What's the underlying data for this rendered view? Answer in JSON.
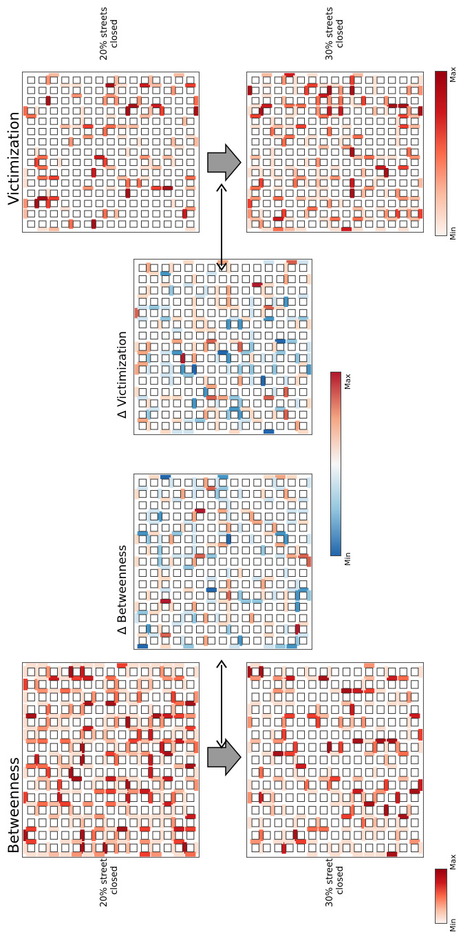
{
  "labels": {
    "betweenness": "Betweenness",
    "victimization": "Victimization",
    "delta_betweenness": "Δ Betweenness",
    "delta_victimization": "Δ Victimization"
  },
  "captions": {
    "bet_20": [
      "20% streets",
      "closed"
    ],
    "bet_30": [
      "30% streets",
      "closed"
    ],
    "vic_20": [
      "20% streets",
      "closed"
    ],
    "vic_30": [
      "30% streets",
      "closed"
    ]
  },
  "colorbars": {
    "sequential": {
      "min_label": "Min",
      "max_label": "Max",
      "colors": [
        "#fdf3ef",
        "#fcbba1",
        "#fb6a4a",
        "#cb181d",
        "#99000d"
      ]
    },
    "diverging": {
      "min_label": "Min",
      "max_label": "Max",
      "colors": [
        "#2166ac",
        "#92c5de",
        "#f7f7f7",
        "#f4a582",
        "#b2182b"
      ]
    }
  },
  "grid": {
    "cells_per_side": 15
  },
  "panels": {
    "bet_20": {
      "scale": "sequential",
      "intensity": "high"
    },
    "bet_30": {
      "scale": "sequential",
      "intensity": "medium"
    },
    "vic_20": {
      "scale": "sequential",
      "intensity": "low"
    },
    "vic_30": {
      "scale": "sequential",
      "intensity": "medium"
    },
    "delta_bet": {
      "scale": "diverging",
      "intensity": "medium"
    },
    "delta_vic": {
      "scale": "diverging",
      "intensity": "medium"
    }
  },
  "colors": {
    "panel_border": "#555555",
    "cell_border": "#333333",
    "arrow_fill": "#999999",
    "arrow_stroke": "#000000"
  }
}
